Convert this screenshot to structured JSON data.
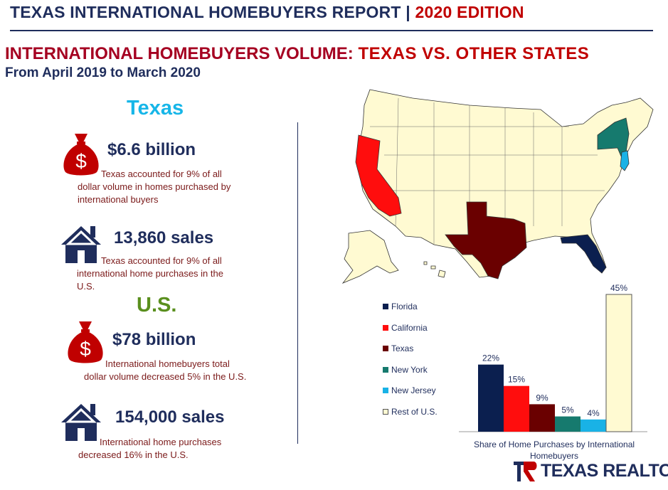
{
  "header": {
    "title_part1": "TEXAS INTERNATIONAL HOMEBUYERS REPORT | ",
    "title_part2": "2020 EDITION"
  },
  "main": {
    "title_part1": "INTERNATIONAL HOMEBUYERS VOLUME: ",
    "title_part2": "TEXAS VS. OTHER STATES",
    "subtitle": "From April 2019 to March 2020"
  },
  "texas": {
    "heading": "Texas",
    "stats": [
      {
        "value": "$6.6 billion",
        "desc_line1": "Texas accounted for 9% of all",
        "desc_line2": "dollar volume in homes purchased by",
        "desc_line3": "international buyers",
        "icon": "money-bag-icon"
      },
      {
        "value": "13,860 sales",
        "desc_line1": "Texas accounted for 9% of all",
        "desc_line2": "international home purchases in the",
        "desc_line3": "U.S.",
        "icon": "house-icon"
      }
    ]
  },
  "us": {
    "heading": "U.S.",
    "stats": [
      {
        "value": "$78 billion",
        "desc_line1": "International homebuyers total",
        "desc_line2": "dollar volume decreased 5% in the U.S.",
        "icon": "money-bag-icon"
      },
      {
        "value": "154,000 sales",
        "desc_line1": "International home purchases",
        "desc_line2": "decreased 16% in the U.S.",
        "icon": "house-icon"
      }
    ]
  },
  "chart_data": {
    "type": "bar",
    "categories": [
      "Florida",
      "California",
      "Texas",
      "New York",
      "New Jersey",
      "Rest of U.S."
    ],
    "values": [
      22,
      15,
      9,
      5,
      4,
      45
    ],
    "labels": [
      "22%",
      "15%",
      "9%",
      "5%",
      "4%",
      "45%"
    ],
    "colors": [
      "#0b1f4f",
      "#ff0d0d",
      "#6a0000",
      "#167a6e",
      "#19b2e6",
      "#fffad2"
    ],
    "xlabel": "Share of Home Purchases by International Homebuyers",
    "ylim": [
      0,
      45
    ],
    "legend": "left",
    "grid": false
  },
  "map": {
    "highlight_colors": {
      "Florida": "#0b1f4f",
      "California": "#ff0d0d",
      "Texas": "#6a0000",
      "New York": "#167a6e",
      "New Jersey": "#19b2e6",
      "Other": "#fffad2"
    }
  },
  "brand": {
    "text": "TEXAS REALTORS",
    "accent": "#c00000",
    "color": "#1f2d5c"
  }
}
